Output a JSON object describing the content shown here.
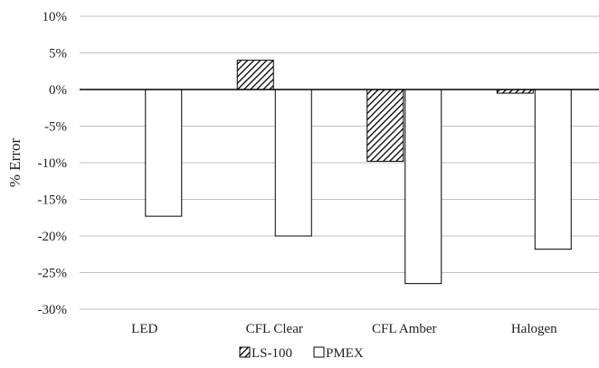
{
  "chart_data": {
    "type": "bar",
    "title": "",
    "xlabel": "",
    "ylabel": "% Error",
    "categories": [
      "LED",
      "CFL Clear",
      "CFL Amber",
      "Halogen"
    ],
    "series": [
      {
        "name": "LS-100",
        "values": [
          0,
          4,
          -9.8,
          -0.5
        ],
        "fill": "hatched"
      },
      {
        "name": "PMEX",
        "values": [
          -17.3,
          -20,
          -26.5,
          -21.8
        ],
        "fill": "#ffffff"
      }
    ],
    "ylim": [
      -30,
      10
    ],
    "ytick_step": 5,
    "ytick_labels": [
      "10%",
      "5%",
      "0%",
      "-5%",
      "-10%",
      "-15%",
      "-20%",
      "-25%",
      "-30%"
    ],
    "grid": true,
    "legend_position": "bottom-center",
    "colors": {
      "grid": "#bfbfbf",
      "bar_stroke": "#000000",
      "axis": "#000000"
    }
  }
}
